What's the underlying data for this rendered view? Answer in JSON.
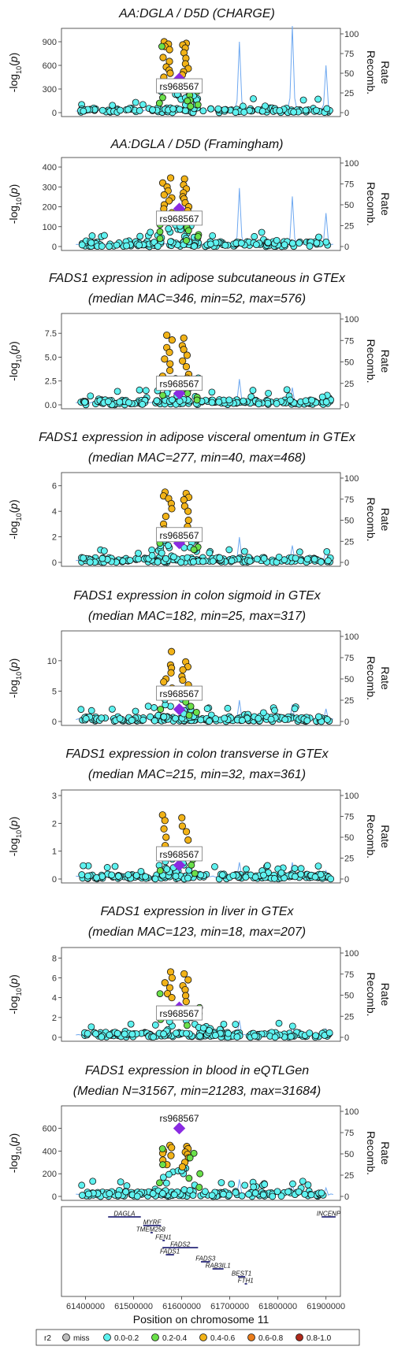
{
  "colors": {
    "miss": "#bdbdbd",
    "r2_0_0.2": "#5ef2f0",
    "r2_0.2_0.4": "#6ae04a",
    "r2_0.4_0.6": "#f2b318",
    "r2_0.6_0.8": "#ea7d1c",
    "r2_0.8_1.0": "#b02a1c",
    "lead": "#8a2be2",
    "recomb": "#6ea8f0",
    "gene_bar": "#2a2a7a"
  },
  "chart_data": [
    {
      "type": "scatter",
      "title": "AA:DGLA / D5D (CHARGE)",
      "subtitle": "",
      "ylabel": "-log10(p)",
      "y2label": "Recomb. Rate",
      "yticks": [
        0,
        300,
        600,
        900
      ],
      "ylim": [
        0,
        1000
      ],
      "y2ticks": [
        0,
        25,
        50,
        75,
        100
      ],
      "lead_snp": "rs968567",
      "lead_value": 430,
      "n_low": 160,
      "peak_orange": [
        900,
        880,
        870,
        860,
        840,
        820,
        800,
        760,
        700,
        690,
        650,
        620,
        580,
        560,
        540,
        520,
        500,
        480,
        450
      ],
      "green": [
        840,
        270,
        220,
        190,
        160,
        150,
        120,
        100,
        80
      ],
      "label_y": 320,
      "label_above": false,
      "recomb_peaks": [
        [
          61720000,
          90
        ],
        [
          61830000,
          110
        ],
        [
          61900000,
          60
        ]
      ]
    },
    {
      "type": "scatter",
      "title": "AA:DGLA / D5D (Framingham)",
      "subtitle": "",
      "ylabel": "-log10(p)",
      "y2label": "Recomb. Rate",
      "yticks": [
        0,
        100,
        200,
        300,
        400
      ],
      "ylim": [
        0,
        420
      ],
      "y2ticks": [
        0,
        25,
        50,
        75,
        100
      ],
      "lead_snp": "rs968567",
      "lead_value": 190,
      "n_low": 160,
      "peak_orange": [
        345,
        340,
        320,
        310,
        300,
        290,
        280,
        270,
        260,
        250,
        245,
        240,
        230,
        220,
        210,
        200,
        190,
        180,
        170
      ],
      "green": [
        110,
        95,
        80,
        75,
        60,
        50,
        40,
        30
      ],
      "label_y": 135,
      "label_above": false,
      "recomb_peaks": [
        [
          61720000,
          70
        ],
        [
          61830000,
          60
        ],
        [
          61900000,
          40
        ]
      ]
    },
    {
      "type": "scatter",
      "title": "FADS1 expression in adipose subcutaneous in GTEx",
      "subtitle": "(median MAC=346, min=52, max=576)",
      "ylabel": "-log10(p)",
      "y2label": "Recomb. Rate",
      "yticks": [
        0,
        2.5,
        5,
        7.5
      ],
      "ytick_labels": [
        "0.0",
        "2.5",
        "5.0",
        "7.5"
      ],
      "ylim": [
        0,
        9
      ],
      "y2ticks": [
        0,
        25,
        50,
        75,
        100
      ],
      "lead_snp": "rs968567",
      "lead_value": 1.2,
      "n_low": 180,
      "peak_orange": [
        7.3,
        7.0,
        6.8,
        6.2,
        6.0,
        5.8,
        5.5,
        5.2,
        4.8,
        4.6,
        4.3,
        4.0,
        3.6,
        3.2,
        3.0,
        2.8
      ],
      "green": [
        2.0,
        1.6,
        1.2,
        1.0,
        0.8,
        0.5
      ],
      "label_y": 2.1,
      "label_above": false,
      "recomb_peaks": [
        [
          61720000,
          30
        ],
        [
          61830000,
          20
        ],
        [
          61900000,
          15
        ]
      ]
    },
    {
      "type": "scatter",
      "title": "FADS1 expression in adipose visceral omentum in GTEx",
      "subtitle": "(median MAC=277, min=40, max=468)",
      "ylabel": "-log10(p)",
      "y2label": "Recomb. Rate",
      "yticks": [
        0,
        2,
        4,
        6
      ],
      "ylim": [
        0,
        6.6
      ],
      "y2ticks": [
        0,
        25,
        50,
        75,
        100
      ],
      "lead_snp": "rs968567",
      "lead_value": 1.5,
      "n_low": 180,
      "peak_orange": [
        5.5,
        5.4,
        5.2,
        5.1,
        5.0,
        4.9,
        4.6,
        4.4,
        4.2,
        4.0,
        3.6,
        3.3,
        3.0,
        2.8,
        2.6,
        2.4
      ],
      "green": [
        2.4,
        2.0,
        1.8,
        1.5,
        1.2,
        1.0
      ],
      "label_y": 2.05,
      "label_above": false,
      "recomb_peaks": [
        [
          61720000,
          30
        ],
        [
          61830000,
          20
        ],
        [
          61900000,
          15
        ]
      ]
    },
    {
      "type": "scatter",
      "title": "FADS1 expression in colon sigmoid in GTEx",
      "subtitle": "(median MAC=182, min=25, max=317)",
      "ylabel": "-log10(p)",
      "y2label": "Recomb. Rate",
      "yticks": [
        0,
        5,
        10
      ],
      "ylim": [
        0,
        14
      ],
      "y2ticks": [
        0,
        25,
        50,
        75,
        100
      ],
      "lead_snp": "rs968567",
      "lead_value": 2.0,
      "n_low": 180,
      "peak_orange": [
        11.5,
        9.8,
        9.3,
        9.0,
        8.8,
        8.5,
        8.0,
        7.4,
        7.0,
        6.8,
        6.5,
        6.0,
        5.5,
        5.0,
        4.5,
        4.0
      ],
      "green": [
        4.0,
        3.2,
        2.5,
        2.0,
        1.5,
        1.0
      ],
      "label_y": 4.4,
      "label_above": false,
      "recomb_peaks": [
        [
          61720000,
          25
        ],
        [
          61830000,
          20
        ],
        [
          61900000,
          15
        ]
      ]
    },
    {
      "type": "scatter",
      "title": "FADS1 expression in colon transverse in GTEx",
      "subtitle": "(median MAC=215, min=32, max=361)",
      "ylabel": "-log10(p)",
      "y2label": "Recomb. Rate",
      "yticks": [
        0,
        1,
        2,
        3
      ],
      "ylim": [
        0,
        3
      ],
      "y2ticks": [
        0,
        25,
        50,
        75,
        100
      ],
      "lead_snp": "rs968567",
      "lead_value": 0.5,
      "n_low": 190,
      "peak_orange": [
        2.3,
        2.2,
        2.1,
        1.9,
        1.8,
        1.7,
        1.5,
        1.4,
        1.2,
        1.0,
        0.9,
        0.8
      ],
      "green": [
        0.9,
        0.7,
        0.5,
        0.3,
        0.2
      ],
      "label_y": 0.85,
      "label_above": false,
      "recomb_peaks": [
        [
          61720000,
          20
        ],
        [
          61830000,
          20
        ],
        [
          61900000,
          10
        ]
      ]
    },
    {
      "type": "scatter",
      "title": "FADS1 expression in liver in GTEx",
      "subtitle": "(median MAC=123, min=18, max=207)",
      "ylabel": "-log10(p)",
      "y2label": "Recomb. Rate",
      "yticks": [
        0,
        2,
        4,
        6,
        8
      ],
      "ylim": [
        0,
        8.5
      ],
      "y2ticks": [
        0,
        25,
        50,
        75,
        100
      ],
      "lead_snp": "rs968567",
      "lead_value": 3.0,
      "n_low": 180,
      "peak_orange": [
        6.6,
        6.4,
        6.0,
        5.8,
        5.5,
        5.2,
        5.0,
        4.8,
        4.4,
        4.2,
        4.0,
        3.6
      ],
      "green": [
        4.4,
        3.0,
        2.4,
        1.8,
        1.2
      ],
      "label_y": 2.3,
      "label_above": false,
      "recomb_peaks": [
        [
          61720000,
          20
        ],
        [
          61830000,
          15
        ],
        [
          61900000,
          10
        ]
      ]
    },
    {
      "type": "scatter",
      "title": "FADS1 expression in blood in eQTLGen",
      "subtitle": "(Median N=31567, min=21283, max=31684)",
      "ylabel": "-log10(p)",
      "y2label": "Recomb. Rate",
      "yticks": [
        0,
        200,
        400,
        600
      ],
      "ylim": [
        0,
        750
      ],
      "y2ticks": [
        0,
        25,
        50,
        75,
        100
      ],
      "lead_snp": "rs968567",
      "lead_value": 600,
      "n_low": 180,
      "peak_orange": [
        450,
        440,
        430,
        420,
        400,
        390,
        380,
        370,
        360,
        340,
        320,
        300,
        280,
        260
      ],
      "green": [
        420,
        380,
        340,
        280,
        200,
        160,
        120,
        80
      ],
      "label_y": 680,
      "label_above": true,
      "recomb_peaks": [
        [
          61720000,
          20
        ],
        [
          61830000,
          15
        ],
        [
          61900000,
          10
        ]
      ]
    }
  ],
  "genes": [
    {
      "name": "DAGLA",
      "start": 61447000,
      "end": 61515000,
      "row": 0
    },
    {
      "name": "INCENP",
      "start": 61891000,
      "end": 61920000,
      "row": 0
    },
    {
      "name": "MYRF",
      "start": 61520000,
      "end": 61557000,
      "row": 1
    },
    {
      "name": "TMEM258",
      "start": 61535000,
      "end": 61536000,
      "row": 2
    },
    {
      "name": "FEN1",
      "start": 61560000,
      "end": 61564000,
      "row": 3
    },
    {
      "name": "FADS2",
      "start": 61560000,
      "end": 61634000,
      "row": 4
    },
    {
      "name": "FADS1",
      "start": 61567000,
      "end": 61584000,
      "row": 5
    },
    {
      "name": "FADS3",
      "start": 61640000,
      "end": 61659000,
      "row": 6
    },
    {
      "name": "RAB3IL1",
      "start": 61664000,
      "end": 61687000,
      "row": 7
    },
    {
      "name": "BEST1",
      "start": 61717000,
      "end": 61732000,
      "row": 8
    },
    {
      "name": "FTH1",
      "start": 61731000,
      "end": 61735000,
      "row": 9
    }
  ],
  "xaxis": {
    "label": "Position on chromosome 11",
    "ticks": [
      61400000,
      61500000,
      61600000,
      61700000,
      61800000,
      61900000
    ],
    "ticklabels": [
      "61400000",
      "61500000",
      "61600000",
      "61700000",
      "61800000",
      "61900000"
    ],
    "xlim": [
      61350000,
      61930000
    ]
  },
  "legend": {
    "title": "r2",
    "items": [
      "miss",
      "0.0-0.2",
      "0.2-0.4",
      "0.4-0.6",
      "0.6-0.8",
      "0.8-1.0"
    ]
  }
}
